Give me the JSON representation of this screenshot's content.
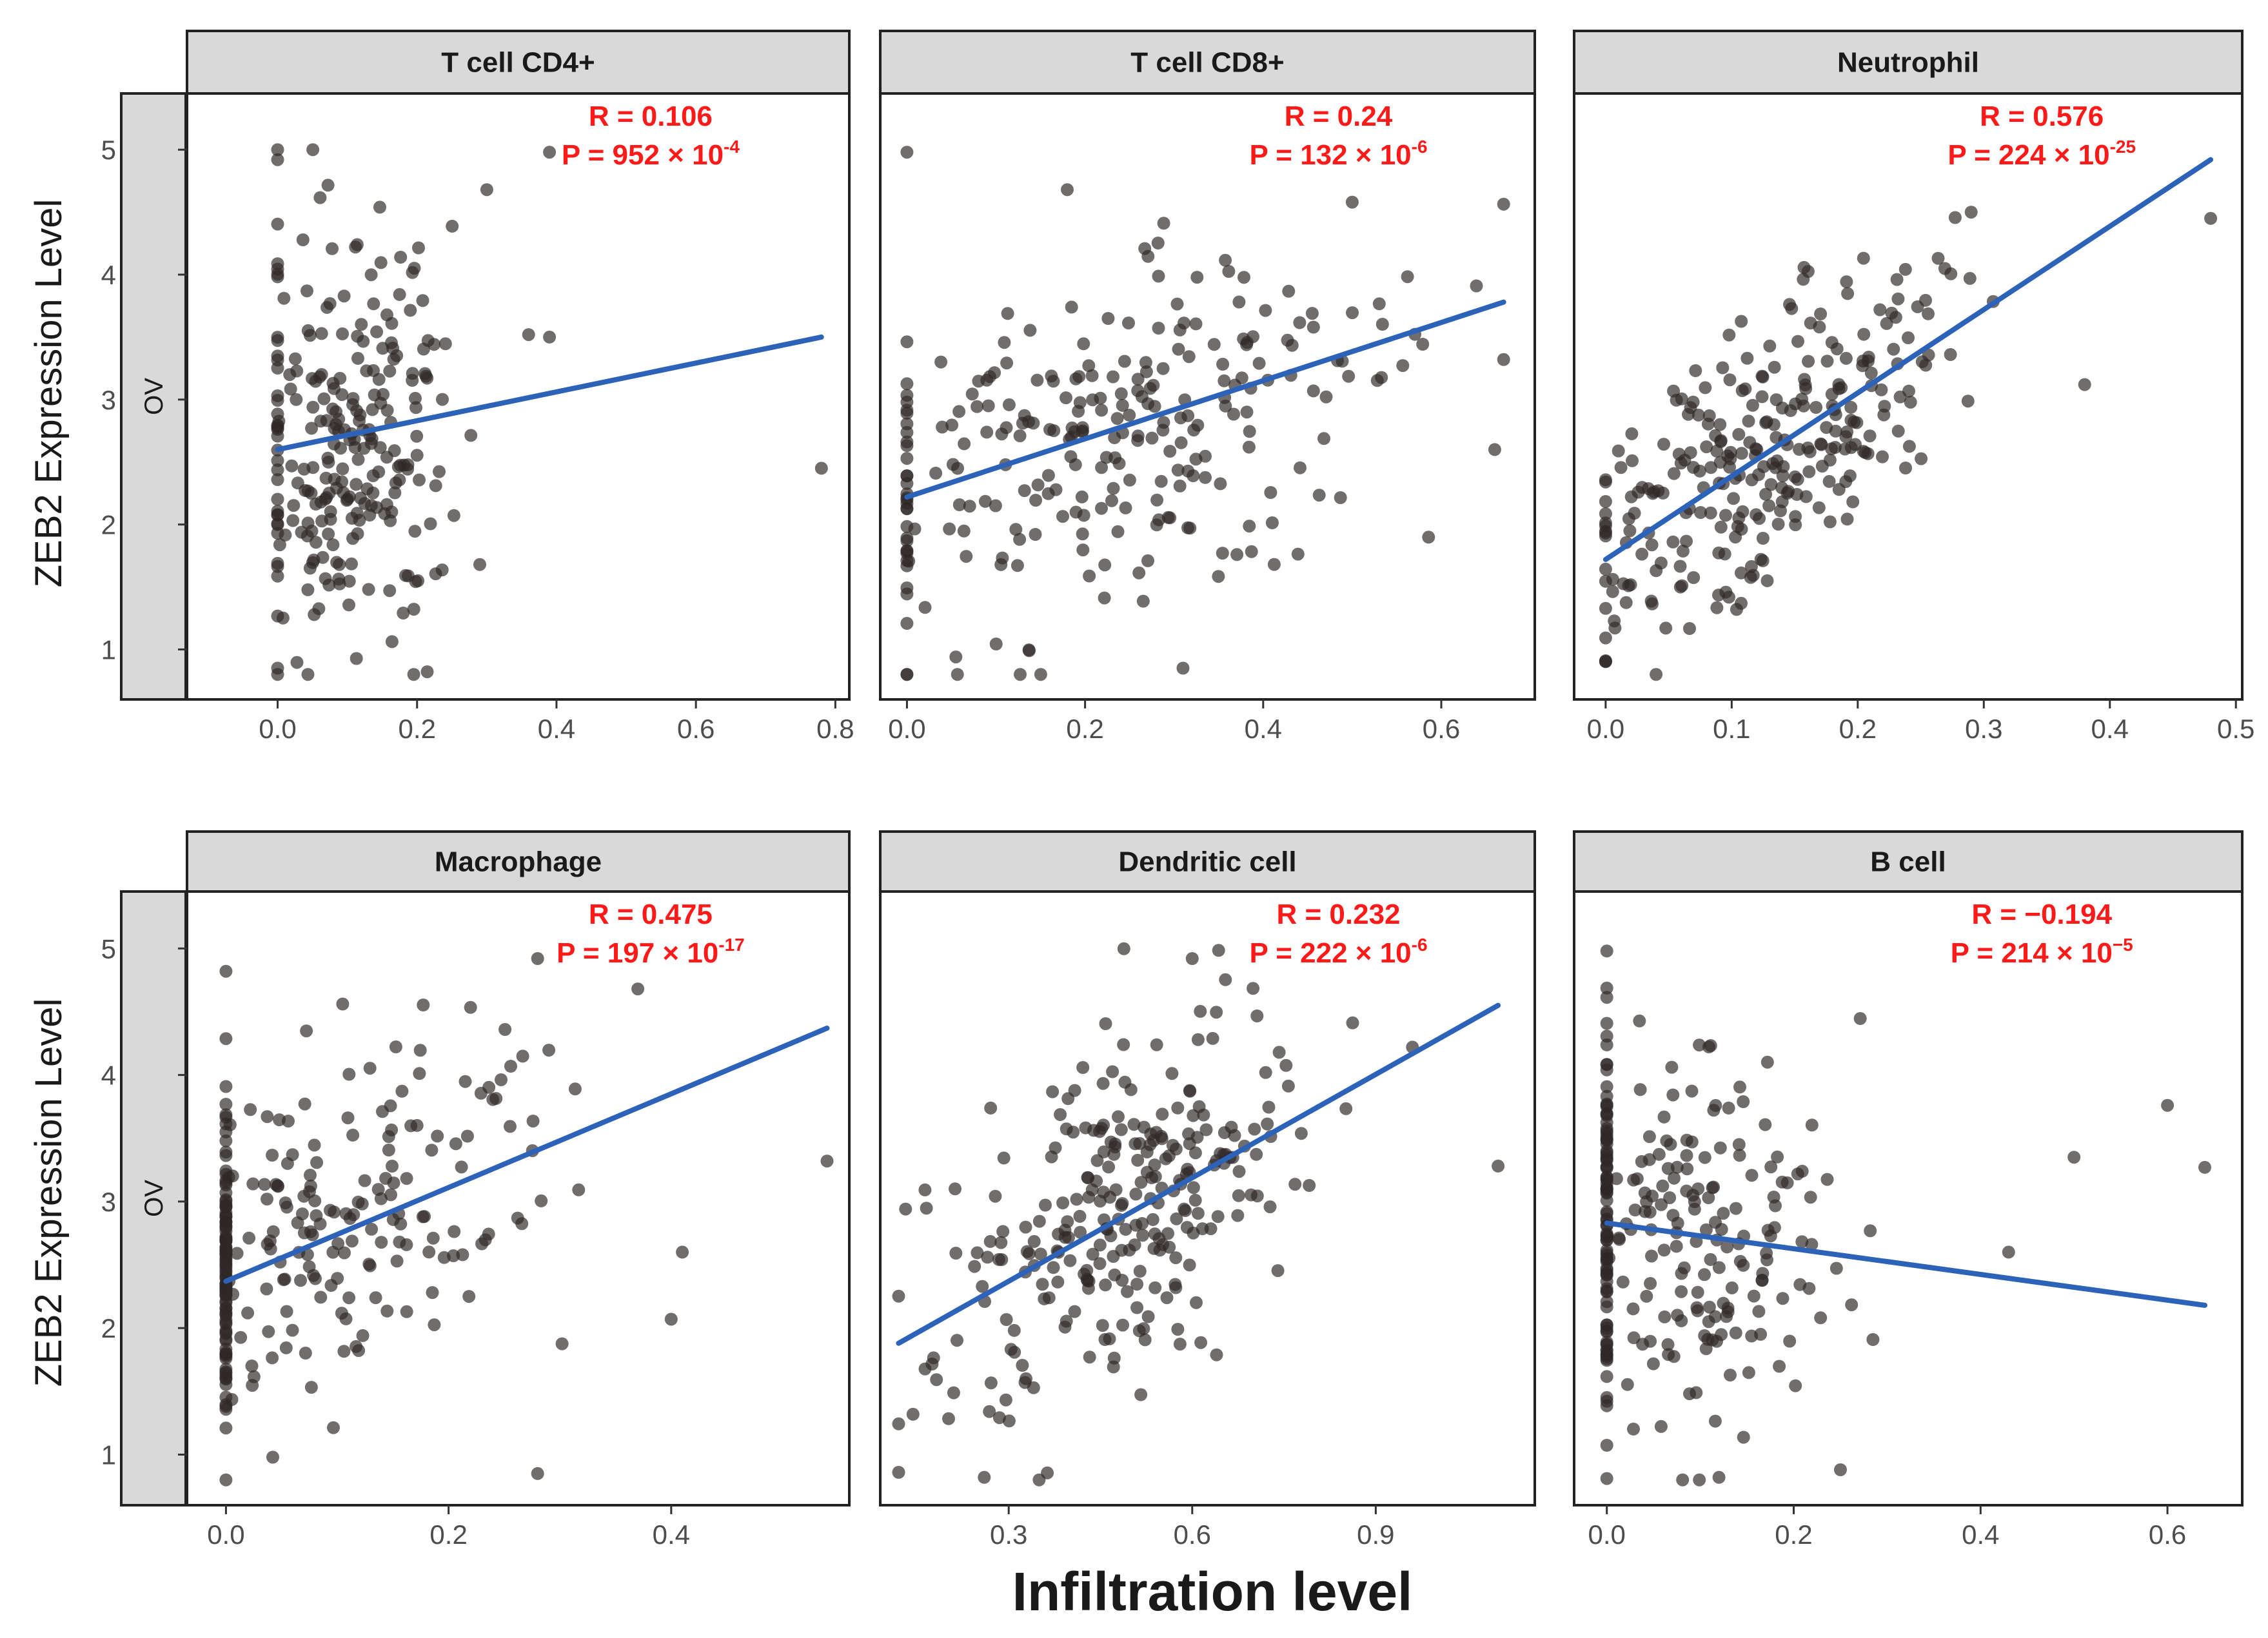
{
  "figure": {
    "y_title": "ZEB2 Expression Level",
    "x_title": "Infiltration level",
    "row_label": "OV",
    "y_ticks": [
      "1",
      "2",
      "3",
      "4",
      "5"
    ]
  },
  "colors": {
    "points": "#2f2828",
    "fit_line": "#2c63b8",
    "stats": "#ff1a1a",
    "strip": "#d9d9d9"
  },
  "chart_data": [
    {
      "type": "scatter",
      "title": "T cell CD4+",
      "xlabel": "Infiltration level",
      "ylabel": "ZEB2 Expression Level",
      "xlim": [
        -0.13,
        0.82
      ],
      "ylim": [
        0.6,
        5.45
      ],
      "x_ticks": [
        "0.0",
        "0.2",
        "0.4",
        "0.6",
        "0.8"
      ],
      "x_tick_values": [
        0,
        0.2,
        0.4,
        0.6,
        0.8
      ],
      "fit": {
        "x": [
          0.0,
          0.78
        ],
        "y": [
          2.6,
          3.5
        ]
      },
      "stats": {
        "r": "R = 0.106",
        "p_base": "P = 952 × 10",
        "p_exp": "-4"
      },
      "n": 250,
      "seed": 11,
      "x_dist": {
        "mean": 0.11,
        "sd": 0.065,
        "zero_frac": 0.12,
        "min": 0.0,
        "max": 0.32
      },
      "y_noise": 0.82,
      "extremes": [
        [
          0.39,
          4.98
        ],
        [
          0.78,
          2.45
        ],
        [
          0.3,
          4.68
        ],
        [
          0.29,
          1.68
        ],
        [
          0.36,
          3.52
        ],
        [
          0.39,
          3.5
        ],
        [
          0.0,
          4.92
        ],
        [
          0.0,
          0.85
        ]
      ]
    },
    {
      "type": "scatter",
      "title": "T cell CD8+",
      "xlabel": "Infiltration level",
      "ylabel": "ZEB2 Expression Level",
      "xlim": [
        -0.03,
        0.705
      ],
      "ylim": [
        0.6,
        5.45
      ],
      "x_ticks": [
        "0.0",
        "0.2",
        "0.4",
        "0.6"
      ],
      "x_tick_values": [
        0,
        0.2,
        0.4,
        0.6
      ],
      "fit": {
        "x": [
          0.0,
          0.67
        ],
        "y": [
          2.22,
          3.78
        ]
      },
      "stats": {
        "r": "R = 0.24",
        "p_base": "P = 132 × 10",
        "p_exp": "-6"
      },
      "n": 260,
      "seed": 23,
      "x_dist": {
        "mean": 0.24,
        "sd": 0.14,
        "zero_frac": 0.05,
        "min": 0.0,
        "max": 0.67
      },
      "y_noise": 0.75,
      "extremes": [
        [
          0.0,
          4.98
        ],
        [
          0.31,
          0.85
        ],
        [
          0.5,
          4.58
        ],
        [
          0.66,
          2.6
        ],
        [
          0.67,
          3.32
        ],
        [
          0.18,
          4.68
        ]
      ]
    },
    {
      "type": "scatter",
      "title": "Neutrophil",
      "xlabel": "Infiltration level",
      "ylabel": "ZEB2 Expression Level",
      "xlim": [
        -0.025,
        0.505
      ],
      "ylim": [
        0.6,
        5.45
      ],
      "x_ticks": [
        "0.0",
        "0.1",
        "0.2",
        "0.3",
        "0.4",
        "0.5"
      ],
      "x_tick_values": [
        0,
        0.1,
        0.2,
        0.3,
        0.4,
        0.5
      ],
      "fit": {
        "x": [
          0.0,
          0.48
        ],
        "y": [
          1.72,
          4.92
        ]
      },
      "stats": {
        "r": "R = 0.576",
        "p_base": "P = 224 × 10",
        "p_exp": "-25"
      },
      "n": 280,
      "seed": 37,
      "x_dist": {
        "mean": 0.12,
        "sd": 0.075,
        "zero_frac": 0.03,
        "min": 0.0,
        "max": 0.48
      },
      "y_noise": 0.5,
      "extremes": [
        [
          0.48,
          4.45
        ],
        [
          0.38,
          3.12
        ],
        [
          0.04,
          0.8
        ],
        [
          0.29,
          4.5
        ]
      ]
    },
    {
      "type": "scatter",
      "title": "Macrophage",
      "xlabel": "Infiltration level",
      "ylabel": "ZEB2 Expression Level",
      "xlim": [
        -0.035,
        0.56
      ],
      "ylim": [
        0.6,
        5.45
      ],
      "x_ticks": [
        "0.0",
        "0.2",
        "0.4"
      ],
      "x_tick_values": [
        0,
        0.2,
        0.4
      ],
      "fit": {
        "x": [
          0.0,
          0.54
        ],
        "y": [
          2.37,
          4.37
        ]
      },
      "stats": {
        "r": "R = 0.475",
        "p_base": "P = 197 × 10",
        "p_exp": "-17"
      },
      "n": 270,
      "seed": 51,
      "x_dist": {
        "mean": 0.1,
        "sd": 0.09,
        "zero_frac": 0.3,
        "min": 0.0,
        "max": 0.54
      },
      "y_noise": 0.65,
      "extremes": [
        [
          0.28,
          0.85
        ],
        [
          0.28,
          4.92
        ],
        [
          0.37,
          4.68
        ],
        [
          0.41,
          2.6
        ],
        [
          0.4,
          2.07
        ],
        [
          0.54,
          3.32
        ],
        [
          0.0,
          4.82
        ]
      ]
    },
    {
      "type": "scatter",
      "title": "Dendritic cell",
      "xlabel": "Infiltration level",
      "ylabel": "ZEB2 Expression Level",
      "xlim": [
        0.09,
        1.16
      ],
      "ylim": [
        0.6,
        5.45
      ],
      "x_ticks": [
        "0.3",
        "0.6",
        "0.9"
      ],
      "x_tick_values": [
        0.3,
        0.6,
        0.9
      ],
      "fit": {
        "x": [
          0.12,
          1.1
        ],
        "y": [
          1.88,
          4.55
        ]
      },
      "stats": {
        "r": "R = 0.232",
        "p_base": "P = 222 × 10",
        "p_exp": "-6"
      },
      "n": 270,
      "seed": 67,
      "x_dist": {
        "mean": 0.47,
        "sd": 0.15,
        "zero_frac": 0.0,
        "min": 0.12,
        "max": 1.1
      },
      "y_noise": 0.62,
      "extremes": [
        [
          1.1,
          3.28
        ],
        [
          0.12,
          0.86
        ],
        [
          0.6,
          4.92
        ],
        [
          0.96,
          4.22
        ],
        [
          0.26,
          0.82
        ]
      ]
    },
    {
      "type": "scatter",
      "title": "B cell",
      "xlabel": "Infiltration level",
      "ylabel": "ZEB2 Expression Level",
      "xlim": [
        -0.035,
        0.68
      ],
      "ylim": [
        0.6,
        5.45
      ],
      "x_ticks": [
        "0.0",
        "0.2",
        "0.4",
        "0.6"
      ],
      "x_tick_values": [
        0,
        0.2,
        0.4,
        0.6
      ],
      "fit": {
        "x": [
          0.0,
          0.64
        ],
        "y": [
          2.83,
          2.18
        ]
      },
      "stats": {
        "r": "R = −0.194",
        "p_base": "P = 214 × 10",
        "p_exp": "−5"
      },
      "n": 260,
      "seed": 83,
      "x_dist": {
        "mean": 0.1,
        "sd": 0.07,
        "zero_frac": 0.3,
        "min": 0.0,
        "max": 0.34
      },
      "y_noise": 0.75,
      "extremes": [
        [
          0.64,
          3.27
        ],
        [
          0.6,
          3.76
        ],
        [
          0.5,
          3.35
        ],
        [
          0.43,
          2.6
        ],
        [
          0.0,
          4.98
        ],
        [
          0.12,
          0.82
        ],
        [
          0.25,
          0.88
        ]
      ]
    }
  ]
}
